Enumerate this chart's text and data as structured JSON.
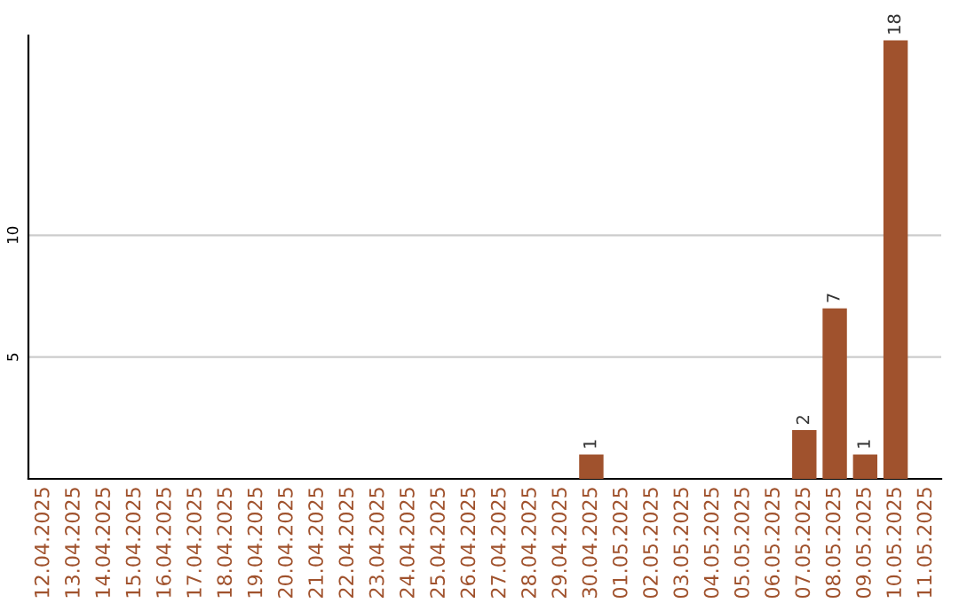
{
  "chart_data": {
    "type": "bar",
    "categories": [
      "12.04.2025",
      "13.04.2025",
      "14.04.2025",
      "15.04.2025",
      "16.04.2025",
      "17.04.2025",
      "18.04.2025",
      "19.04.2025",
      "20.04.2025",
      "21.04.2025",
      "22.04.2025",
      "23.04.2025",
      "24.04.2025",
      "25.04.2025",
      "26.04.2025",
      "27.04.2025",
      "28.04.2025",
      "29.04.2025",
      "30.04.2025",
      "01.05.2025",
      "02.05.2025",
      "03.05.2025",
      "04.05.2025",
      "05.05.2025",
      "06.05.2025",
      "07.05.2025",
      "08.05.2025",
      "09.05.2025",
      "10.05.2025",
      "11.05.2025"
    ],
    "values": [
      0,
      0,
      0,
      0,
      0,
      0,
      0,
      0,
      0,
      0,
      0,
      0,
      0,
      0,
      0,
      0,
      0,
      0,
      1,
      0,
      0,
      0,
      0,
      0,
      0,
      2,
      7,
      1,
      18,
      0
    ],
    "value_labels": [
      null,
      null,
      null,
      null,
      null,
      null,
      null,
      null,
      null,
      null,
      null,
      null,
      null,
      null,
      null,
      null,
      null,
      null,
      "1",
      null,
      null,
      null,
      null,
      null,
      null,
      "2",
      "7",
      "1",
      "18",
      null
    ],
    "color": "#a0522d",
    "ylim": [
      0,
      18.2
    ],
    "yticks": [
      5,
      10
    ],
    "grid": "y"
  }
}
